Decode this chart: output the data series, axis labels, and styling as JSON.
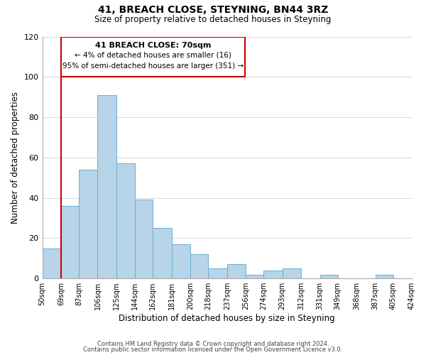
{
  "title1": "41, BREACH CLOSE, STEYNING, BN44 3RZ",
  "title2": "Size of property relative to detached houses in Steyning",
  "xlabel": "Distribution of detached houses by size in Steyning",
  "ylabel": "Number of detached properties",
  "bar_lefts": [
    50,
    69,
    87,
    106,
    125,
    144,
    162,
    181,
    200,
    218,
    237,
    256,
    274,
    293,
    312,
    331,
    349,
    368,
    387,
    405
  ],
  "bar_rights": [
    69,
    87,
    106,
    125,
    144,
    162,
    181,
    200,
    218,
    237,
    256,
    274,
    293,
    312,
    331,
    349,
    368,
    387,
    405,
    424
  ],
  "bar_heights": [
    15,
    36,
    54,
    91,
    57,
    39,
    25,
    17,
    12,
    5,
    7,
    2,
    4,
    5,
    0,
    2,
    0,
    0,
    2,
    0
  ],
  "bar_color": "#b8d4e8",
  "bar_edgecolor": "#6aaed6",
  "x_tick_labels": [
    "50sqm",
    "69sqm",
    "87sqm",
    "106sqm",
    "125sqm",
    "144sqm",
    "162sqm",
    "181sqm",
    "200sqm",
    "218sqm",
    "237sqm",
    "256sqm",
    "274sqm",
    "293sqm",
    "312sqm",
    "331sqm",
    "349sqm",
    "368sqm",
    "387sqm",
    "405sqm",
    "424sqm"
  ],
  "x_tick_positions": [
    50,
    69,
    87,
    106,
    125,
    144,
    162,
    181,
    200,
    218,
    237,
    256,
    274,
    293,
    312,
    331,
    349,
    368,
    387,
    405,
    424
  ],
  "xlim": [
    50,
    424
  ],
  "ylim": [
    0,
    120
  ],
  "yticks": [
    0,
    20,
    40,
    60,
    80,
    100,
    120
  ],
  "vline_x": 69,
  "vline_color": "#cc0000",
  "annotation_title": "41 BREACH CLOSE: 70sqm",
  "annotation_line1": "← 4% of detached houses are smaller (16)",
  "annotation_line2": "95% of semi-detached houses are larger (351) →",
  "footer1": "Contains HM Land Registry data © Crown copyright and database right 2024.",
  "footer2": "Contains public sector information licensed under the Open Government Licence v3.0.",
  "background_color": "#ffffff",
  "grid_color": "#d4dde6"
}
